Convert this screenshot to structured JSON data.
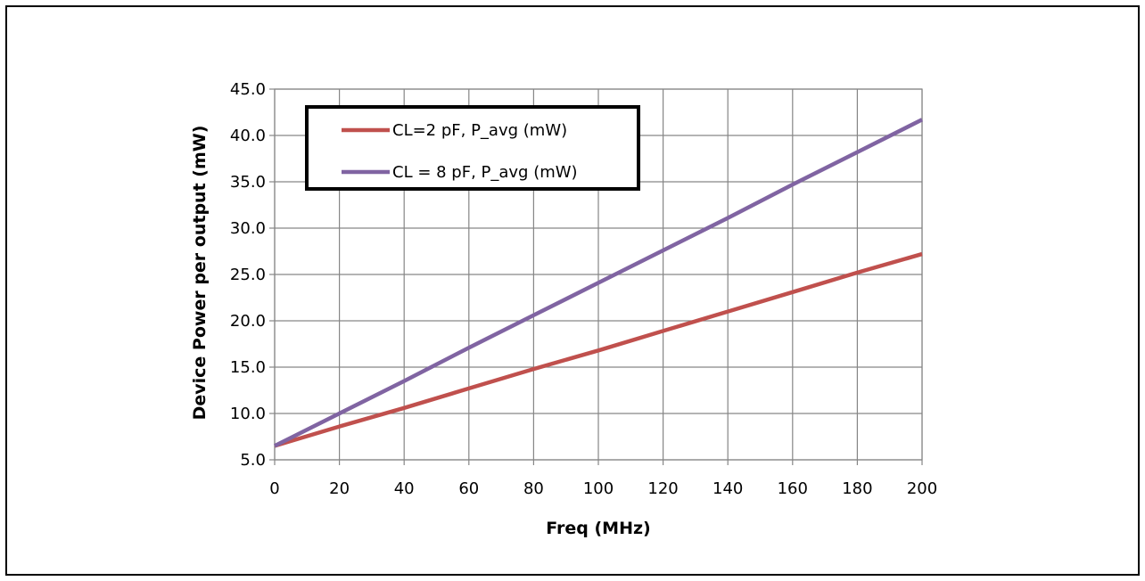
{
  "chart_data": {
    "type": "line",
    "title": "",
    "xlabel": "Freq (MHz)",
    "ylabel": "Device Power per output (mW)",
    "xlim": [
      0,
      200
    ],
    "ylim": [
      5,
      45
    ],
    "x_ticks": [
      "0",
      "20",
      "40",
      "60",
      "80",
      "100",
      "120",
      "140",
      "160",
      "180",
      "200"
    ],
    "y_ticks": [
      "5.0",
      "10.0",
      "15.0",
      "20.0",
      "25.0",
      "30.0",
      "35.0",
      "40.0",
      "45.0"
    ],
    "grid": true,
    "legend_position": "top-left",
    "series": [
      {
        "name": "CL=2 pF, P_avg (mW)",
        "color": "#c0504d",
        "x": [
          0,
          20,
          40,
          60,
          80,
          100,
          120,
          140,
          160,
          180,
          200
        ],
        "y": [
          6.5,
          8.6,
          10.6,
          12.7,
          14.8,
          16.8,
          18.9,
          21.0,
          23.1,
          25.2,
          27.2
        ]
      },
      {
        "name": "CL = 8 pF, P_avg (mW)",
        "color": "#8064a2",
        "x": [
          0,
          20,
          40,
          60,
          80,
          100,
          120,
          140,
          160,
          180,
          200
        ],
        "y": [
          6.5,
          10.0,
          13.5,
          17.1,
          20.6,
          24.1,
          27.6,
          31.1,
          34.7,
          38.2,
          41.7
        ]
      }
    ]
  }
}
